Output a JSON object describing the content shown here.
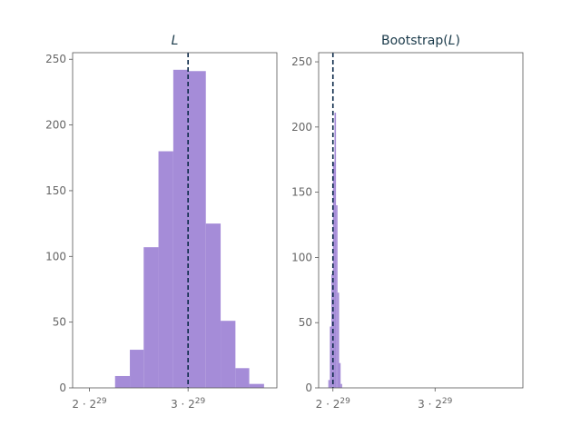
{
  "chart_data": [
    {
      "type": "histogram",
      "title": "L",
      "title_italic": true,
      "color": "#a58cd8",
      "mean_line_color": "#0d2b4a",
      "mean_line": 3.0,
      "x_unit": "2^29",
      "xlim": [
        1.83,
        3.9
      ],
      "ylim": [
        0,
        255
      ],
      "x_ticks": [
        {
          "value": 2,
          "label_coef": "2 · 2",
          "label_exp": "29"
        },
        {
          "value": 3,
          "label_coef": "3 · 2",
          "label_exp": "29"
        }
      ],
      "y_ticks": [
        0,
        50,
        100,
        150,
        200,
        250
      ],
      "bins": [
        {
          "x0": 2.26,
          "x1": 2.41,
          "count": 9
        },
        {
          "x0": 2.41,
          "x1": 2.55,
          "count": 29
        },
        {
          "x0": 2.55,
          "x1": 2.7,
          "count": 107
        },
        {
          "x0": 2.7,
          "x1": 2.85,
          "count": 180
        },
        {
          "x0": 2.85,
          "x1": 3.0,
          "count": 242
        },
        {
          "x0": 3.0,
          "x1": 3.18,
          "count": 241
        },
        {
          "x0": 3.18,
          "x1": 3.33,
          "count": 125
        },
        {
          "x0": 3.33,
          "x1": 3.48,
          "count": 51
        },
        {
          "x0": 3.48,
          "x1": 3.62,
          "count": 15
        },
        {
          "x0": 3.62,
          "x1": 3.77,
          "count": 3
        }
      ]
    },
    {
      "type": "histogram",
      "title": "Bootstrap(",
      "title_italic_part": "L",
      "title_suffix": ")",
      "color": "#a58cd8",
      "mean_line_color": "#0d2b4a",
      "mean_line": 2.0,
      "x_unit": "2^29",
      "xlim": [
        1.86,
        3.86
      ],
      "ylim": [
        0,
        257
      ],
      "x_ticks": [
        {
          "value": 2,
          "label_coef": "2 · 2",
          "label_exp": "29"
        },
        {
          "value": 3,
          "label_coef": "3 · 2",
          "label_exp": "29"
        }
      ],
      "y_ticks": [
        0,
        50,
        100,
        150,
        200,
        250
      ],
      "bins": [
        {
          "x0": 1.955,
          "x1": 1.97,
          "count": 6
        },
        {
          "x0": 1.97,
          "x1": 1.985,
          "count": 47
        },
        {
          "x0": 1.985,
          "x1": 2.0,
          "count": 87
        },
        {
          "x0": 2.0,
          "x1": 2.015,
          "count": 173
        },
        {
          "x0": 2.015,
          "x1": 2.03,
          "count": 211
        },
        {
          "x0": 2.03,
          "x1": 2.045,
          "count": 140
        },
        {
          "x0": 2.045,
          "x1": 2.06,
          "count": 73
        },
        {
          "x0": 2.06,
          "x1": 2.075,
          "count": 19
        },
        {
          "x0": 2.075,
          "x1": 2.09,
          "count": 3
        }
      ]
    }
  ]
}
